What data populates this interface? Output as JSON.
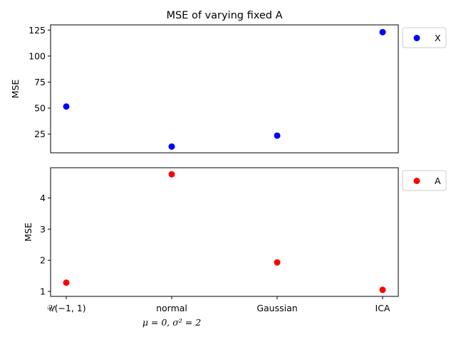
{
  "chart_data": [
    {
      "type": "scatter",
      "title": "MSE of varying fixed A",
      "ylabel": "MSE",
      "xlabel": "",
      "categories": [
        "𝒰(−1, 1)",
        "normal",
        "Gaussian",
        "ICA"
      ],
      "category_sublabels": [
        "",
        "μ = 0, σ² = 2",
        "",
        ""
      ],
      "ylim": [
        7,
        130
      ],
      "yticks": [
        25,
        50,
        75,
        100,
        125
      ],
      "show_xticks": false,
      "grid": false,
      "legend": "right-outside-top",
      "series": [
        {
          "name": "X",
          "color": "#0000ff",
          "values": [
            51.5,
            13,
            23.5,
            123
          ]
        }
      ]
    },
    {
      "type": "scatter",
      "title": "",
      "ylabel": "MSE",
      "xlabel": "",
      "categories": [
        "𝒰(−1, 1)",
        "normal",
        "Gaussian",
        "ICA"
      ],
      "category_sublabels": [
        "",
        "μ = 0, σ² = 2",
        "",
        ""
      ],
      "ylim": [
        0.84,
        4.97
      ],
      "yticks": [
        1,
        2,
        3,
        4
      ],
      "show_xticks": true,
      "grid": false,
      "legend": "right-outside-top",
      "series": [
        {
          "name": "A",
          "color": "#ff0000",
          "values": [
            1.28,
            4.76,
            1.93,
            1.05
          ]
        }
      ]
    }
  ]
}
